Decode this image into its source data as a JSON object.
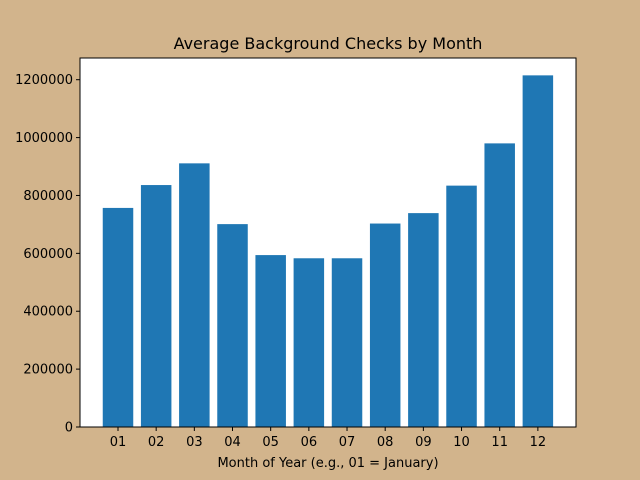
{
  "colors": {
    "figure_background": "#d2b48c",
    "plot_background": "#ffffff",
    "bar": "#1f77b4",
    "axis": "#000000"
  },
  "chart_data": {
    "type": "bar",
    "title": "Average Background Checks by Month",
    "xlabel": "Month of Year (e.g., 01 = January)",
    "ylabel": "",
    "categories": [
      "01",
      "02",
      "03",
      "04",
      "05",
      "06",
      "07",
      "08",
      "09",
      "10",
      "11",
      "12"
    ],
    "values": [
      757000,
      836000,
      911000,
      701000,
      594000,
      583000,
      583000,
      703000,
      739000,
      834000,
      980000,
      1215000
    ],
    "ylim": [
      0,
      1275000
    ],
    "yticks": [
      0,
      200000,
      400000,
      600000,
      800000,
      1000000,
      1200000
    ],
    "ytick_labels": [
      "0",
      "200000",
      "400000",
      "600000",
      "800000",
      "1000000",
      "1200000"
    ],
    "grid": false,
    "legend": "none"
  }
}
